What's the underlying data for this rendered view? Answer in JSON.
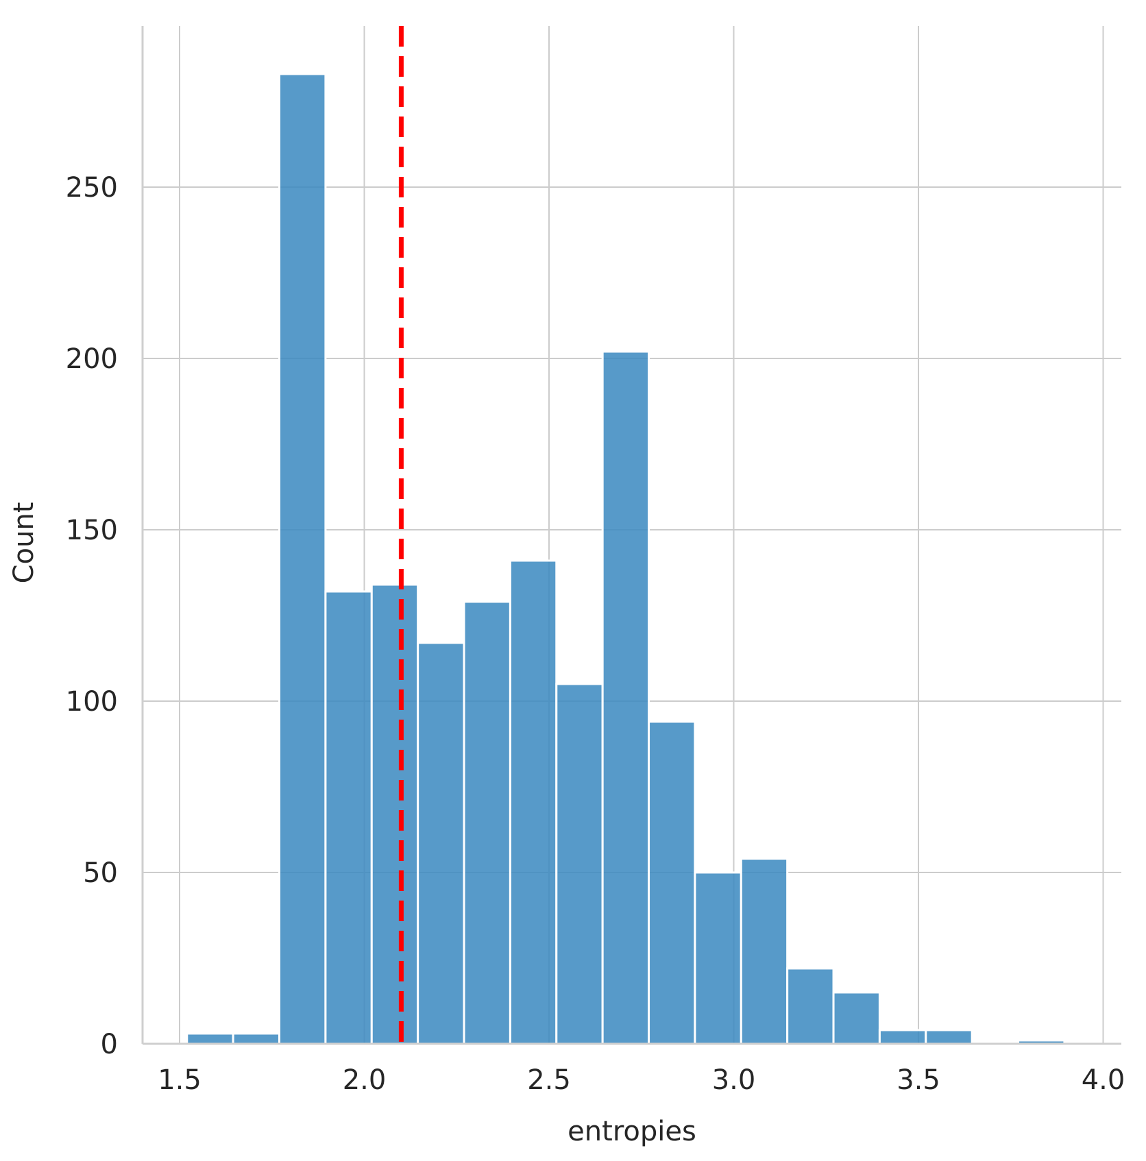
{
  "chart_data": {
    "type": "bar",
    "title": "",
    "xlabel": "entropies",
    "ylabel": "Count",
    "xlim": [
      1.4,
      4.05
    ],
    "ylim": [
      0,
      295
    ],
    "x_ticks": [
      1.5,
      2.0,
      2.5,
      3.0,
      3.5,
      4.0
    ],
    "x_tick_labels": [
      "1.5",
      "2.0",
      "2.5",
      "3.0",
      "3.5",
      "4.0"
    ],
    "y_ticks": [
      0,
      50,
      100,
      150,
      200,
      250
    ],
    "y_tick_labels": [
      "0",
      "50",
      "100",
      "150",
      "200",
      "250"
    ],
    "grid": true,
    "bins": [
      {
        "x0": 1.52,
        "x1": 1.645,
        "count": 3
      },
      {
        "x0": 1.645,
        "x1": 1.77,
        "count": 3
      },
      {
        "x0": 1.77,
        "x1": 1.895,
        "count": 283
      },
      {
        "x0": 1.895,
        "x1": 2.02,
        "count": 132
      },
      {
        "x0": 2.02,
        "x1": 2.145,
        "count": 134
      },
      {
        "x0": 2.145,
        "x1": 2.27,
        "count": 117
      },
      {
        "x0": 2.27,
        "x1": 2.395,
        "count": 129
      },
      {
        "x0": 2.395,
        "x1": 2.52,
        "count": 141
      },
      {
        "x0": 2.52,
        "x1": 2.645,
        "count": 105
      },
      {
        "x0": 2.645,
        "x1": 2.77,
        "count": 202
      },
      {
        "x0": 2.77,
        "x1": 2.895,
        "count": 94
      },
      {
        "x0": 2.895,
        "x1": 3.02,
        "count": 50
      },
      {
        "x0": 3.02,
        "x1": 3.145,
        "count": 54
      },
      {
        "x0": 3.145,
        "x1": 3.27,
        "count": 22
      },
      {
        "x0": 3.27,
        "x1": 3.395,
        "count": 15
      },
      {
        "x0": 3.395,
        "x1": 3.52,
        "count": 4
      },
      {
        "x0": 3.52,
        "x1": 3.645,
        "count": 4
      },
      {
        "x0": 3.645,
        "x1": 3.77,
        "count": 0
      },
      {
        "x0": 3.77,
        "x1": 3.895,
        "count": 1
      }
    ],
    "reference_line": {
      "x": 2.1,
      "color": "#ff0000",
      "style": "dashed"
    },
    "bar_color": "#3a88c0",
    "grid_color": "#cccccc"
  }
}
